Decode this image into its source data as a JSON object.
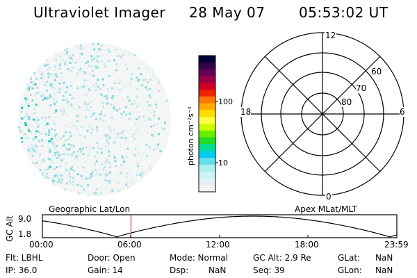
{
  "header": {
    "instrument": "Ultraviolet Imager",
    "date": "28 May 07",
    "time": "05:53:02 UT"
  },
  "colorbar": {
    "unit_label": "photon cm⁻²s⁻¹",
    "ticks": [
      "100",
      "10"
    ],
    "colors": [
      "#000033",
      "#330044",
      "#660055",
      "#990044",
      "#cc0022",
      "#ee2200",
      "#ff7700",
      "#ffaa00",
      "#ffdd00",
      "#ffff44",
      "#ccff00",
      "#66ee00",
      "#22dd22",
      "#00dd99",
      "#00ccee",
      "#66ddee",
      "#aaeeee",
      "#ccf2f2",
      "#e6f2f2",
      "#f2f2f2"
    ]
  },
  "polar": {
    "mlt_labels": {
      "top": "12",
      "left": "18",
      "right": "6",
      "bottom": "0"
    },
    "lat_labels": [
      "60",
      "70",
      "80"
    ]
  },
  "timeline": {
    "left_label": "Geographic Lat/Lon",
    "right_label": "Apex MLat/MLT",
    "axis_title": "GC Alt",
    "y_ticks": [
      "9.0",
      "1.8"
    ],
    "x_ticks": [
      "00:00",
      "06:00",
      "12:00",
      "18:00",
      "23:59"
    ],
    "current_time": "06:00",
    "marker_color": "#cc3333"
  },
  "footer": {
    "row1": {
      "flt": "Flt: LBHL",
      "door": "Door: Open",
      "mode": "Mode: Normal",
      "gc_alt": "GC Alt: 2.9 Re",
      "glat_label": "GLat:",
      "glat_value": "NaN"
    },
    "row2": {
      "ip": "IP: 36.0",
      "gain": "Gain: 14",
      "dsp_label": "Dsp:",
      "dsp_value": "NaN",
      "seq": "Seq: 39",
      "glon_label": "GLon:",
      "glon_value": "NaN"
    }
  }
}
